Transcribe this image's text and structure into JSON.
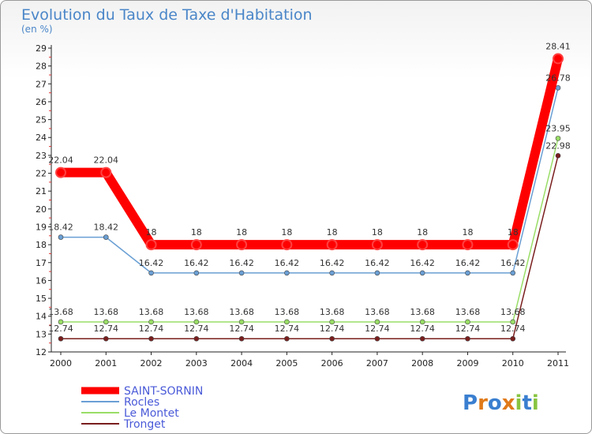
{
  "chart_data": {
    "type": "line",
    "title": "Evolution du Taux de Taxe d'Habitation",
    "subtitle": "(en %)",
    "xlabel": "",
    "ylabel": "",
    "ylim": [
      12,
      29
    ],
    "x": [
      "2000",
      "2001",
      "2002",
      "2003",
      "2004",
      "2005",
      "2006",
      "2007",
      "2008",
      "2009",
      "2010",
      "2011"
    ],
    "yticks": [
      "12",
      "13",
      "14",
      "15",
      "16",
      "17",
      "18",
      "19",
      "20",
      "21",
      "22",
      "23",
      "24",
      "25",
      "26",
      "27",
      "28",
      "29"
    ],
    "series": [
      {
        "name": "SAINT-SORNIN",
        "color": "#ff0000",
        "values": [
          22.04,
          22.04,
          18,
          18,
          18,
          18,
          18,
          18,
          18,
          18,
          18,
          28.41
        ],
        "labels": [
          "22.04",
          "22.04",
          "18",
          "18",
          "18",
          "18",
          "18",
          "18",
          "18",
          "18",
          "18",
          "28.41"
        ]
      },
      {
        "name": "Rocles",
        "color": "#6a9fd4",
        "values": [
          18.42,
          18.42,
          16.42,
          16.42,
          16.42,
          16.42,
          16.42,
          16.42,
          16.42,
          16.42,
          16.42,
          26.78
        ],
        "labels": [
          "18.42",
          "18.42",
          "16.42",
          "16.42",
          "16.42",
          "16.42",
          "16.42",
          "16.42",
          "16.42",
          "16.42",
          "16.42",
          "26.78"
        ]
      },
      {
        "name": "Le Montet",
        "color": "#99dd66",
        "values": [
          13.68,
          13.68,
          13.68,
          13.68,
          13.68,
          13.68,
          13.68,
          13.68,
          13.68,
          13.68,
          13.68,
          23.95
        ],
        "labels": [
          "13.68",
          "13.68",
          "13.68",
          "13.68",
          "13.68",
          "13.68",
          "13.68",
          "13.68",
          "13.68",
          "13.68",
          "13.68",
          "23.95"
        ]
      },
      {
        "name": "Tronget",
        "color": "#7a1e1e",
        "values": [
          12.74,
          12.74,
          12.74,
          12.74,
          12.74,
          12.74,
          12.74,
          12.74,
          12.74,
          12.74,
          12.74,
          22.98
        ],
        "labels": [
          "12.74",
          "12.74",
          "12.74",
          "12.74",
          "12.74",
          "12.74",
          "12.74",
          "12.74",
          "12.74",
          "12.74",
          "12.74",
          "22.98"
        ]
      }
    ],
    "legend_position": "bottom-left",
    "grid": false
  },
  "branding": {
    "logo_text": "Proxiti",
    "logo_letters": [
      "P",
      "r",
      "o",
      "x",
      "i",
      "t",
      "i"
    ],
    "logo_colors": [
      "#3a7fd0",
      "#e07a1a",
      "#3a7fd0",
      "#e07a1a",
      "#88c440",
      "#3a7fd0",
      "#88c440"
    ]
  }
}
